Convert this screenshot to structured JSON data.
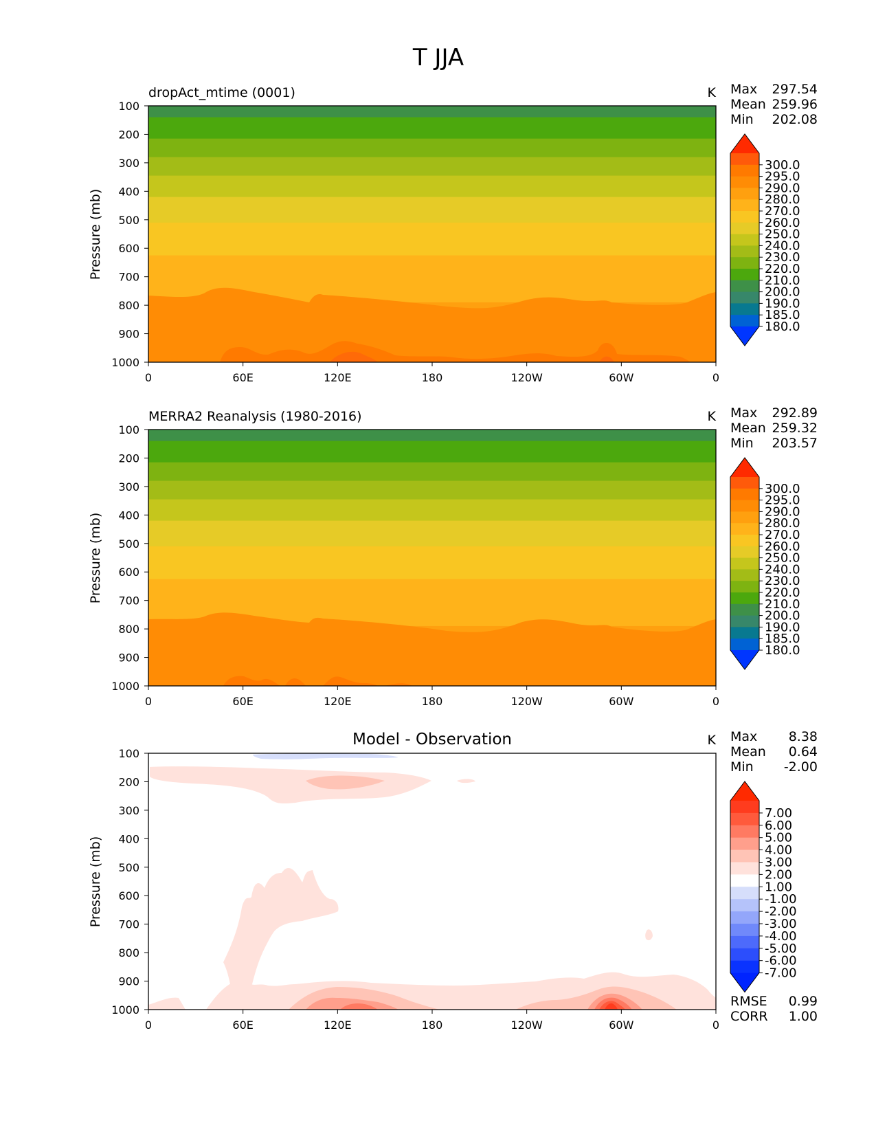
{
  "figure": {
    "title": "T JJA"
  },
  "chart_data": [
    {
      "type": "contour",
      "title": "dropAct_mtime (0001)",
      "units": "K",
      "xlabel": "",
      "ylabel": "Pressure (mb)",
      "x_ticks": [
        "0",
        "60E",
        "120E",
        "180",
        "120W",
        "60W",
        "0"
      ],
      "y_ticks": [
        "100",
        "200",
        "300",
        "400",
        "500",
        "600",
        "700",
        "800",
        "900",
        "1000"
      ],
      "ylim": [
        100,
        1000
      ],
      "stats": {
        "Max": "297.54",
        "Mean": "259.96",
        "Min": "202.08"
      },
      "colorbar": {
        "levels": [
          "300.0",
          "295.0",
          "290.0",
          "280.0",
          "270.0",
          "260.0",
          "250.0",
          "240.0",
          "230.0",
          "220.0",
          "210.0",
          "200.0",
          "190.0",
          "185.0",
          "180.0"
        ],
        "colors": [
          "#ff2a00",
          "#ff5a0a",
          "#ff7a00",
          "#ff8c05",
          "#ffa00f",
          "#ffb31a",
          "#f9c622",
          "#e6cb27",
          "#c5c61c",
          "#a3bc17",
          "#7eb311",
          "#4ca80d",
          "#3e9048",
          "#37876a",
          "#087990",
          "#0062d4",
          "#0036ff"
        ]
      },
      "bands": [
        {
          "bottom": 140,
          "color": "#3e9048"
        },
        {
          "bottom": 215,
          "color": "#4ca80d"
        },
        {
          "bottom": 280,
          "color": "#7eb311"
        },
        {
          "bottom": 345,
          "color": "#a3bc17"
        },
        {
          "bottom": 420,
          "color": "#c5c61c"
        },
        {
          "bottom": 510,
          "color": "#e6cb27"
        },
        {
          "bottom": 625,
          "color": "#f9c622"
        },
        {
          "bottom": 790,
          "color": "#ffb31a"
        },
        {
          "bottom": 1000,
          "color": "#ffa00f"
        }
      ]
    },
    {
      "type": "contour",
      "title": "MERRA2 Reanalysis (1980-2016)",
      "units": "K",
      "xlabel": "",
      "ylabel": "Pressure (mb)",
      "x_ticks": [
        "0",
        "60E",
        "120E",
        "180",
        "120W",
        "60W",
        "0"
      ],
      "y_ticks": [
        "100",
        "200",
        "300",
        "400",
        "500",
        "600",
        "700",
        "800",
        "900",
        "1000"
      ],
      "ylim": [
        100,
        1000
      ],
      "stats": {
        "Max": "292.89",
        "Mean": "259.32",
        "Min": "203.57"
      },
      "colorbar": {
        "levels": [
          "300.0",
          "295.0",
          "290.0",
          "280.0",
          "270.0",
          "260.0",
          "250.0",
          "240.0",
          "230.0",
          "220.0",
          "210.0",
          "200.0",
          "190.0",
          "185.0",
          "180.0"
        ],
        "colors": [
          "#ff2a00",
          "#ff5a0a",
          "#ff7a00",
          "#ff8c05",
          "#ffa00f",
          "#ffb31a",
          "#f9c622",
          "#e6cb27",
          "#c5c61c",
          "#a3bc17",
          "#7eb311",
          "#4ca80d",
          "#3e9048",
          "#37876a",
          "#087990",
          "#0062d4",
          "#0036ff"
        ]
      },
      "bands": [
        {
          "bottom": 140,
          "color": "#3e9048"
        },
        {
          "bottom": 215,
          "color": "#4ca80d"
        },
        {
          "bottom": 280,
          "color": "#7eb311"
        },
        {
          "bottom": 345,
          "color": "#a3bc17"
        },
        {
          "bottom": 420,
          "color": "#c5c61c"
        },
        {
          "bottom": 510,
          "color": "#e6cb27"
        },
        {
          "bottom": 625,
          "color": "#f9c622"
        },
        {
          "bottom": 790,
          "color": "#ffb31a"
        },
        {
          "bottom": 1000,
          "color": "#ffa00f"
        }
      ]
    },
    {
      "type": "contour",
      "title": "Model - Observation",
      "units": "K",
      "xlabel": "",
      "ylabel": "Pressure (mb)",
      "x_ticks": [
        "0",
        "60E",
        "120E",
        "180",
        "120W",
        "60W",
        "0"
      ],
      "y_ticks": [
        "100",
        "200",
        "300",
        "400",
        "500",
        "600",
        "700",
        "800",
        "900",
        "1000"
      ],
      "ylim": [
        100,
        1000
      ],
      "stats": {
        "Max": "8.38",
        "Mean": "0.64",
        "Min": "-2.00"
      },
      "extra_stats": {
        "RMSE": "0.99",
        "CORR": "1.00"
      },
      "colorbar": {
        "levels": [
          "7.00",
          "6.00",
          "5.00",
          "4.00",
          "3.00",
          "2.00",
          "1.00",
          "-1.00",
          "-2.00",
          "-3.00",
          "-4.00",
          "-5.00",
          "-6.00",
          "-7.00"
        ],
        "colors": [
          "#ff2a00",
          "#ff3c1e",
          "#ff5a3c",
          "#ff7a62",
          "#ff9f8c",
          "#ffc4b6",
          "#ffe2dc",
          "#ffffff",
          "#d6defb",
          "#b5c3fa",
          "#93a6fa",
          "#7089fa",
          "#4d6afb",
          "#2c4efc",
          "#0a33ff",
          "#0024ff"
        ]
      },
      "bands": [
        {
          "bottom": 1000,
          "color": "#ffffff"
        }
      ]
    }
  ]
}
